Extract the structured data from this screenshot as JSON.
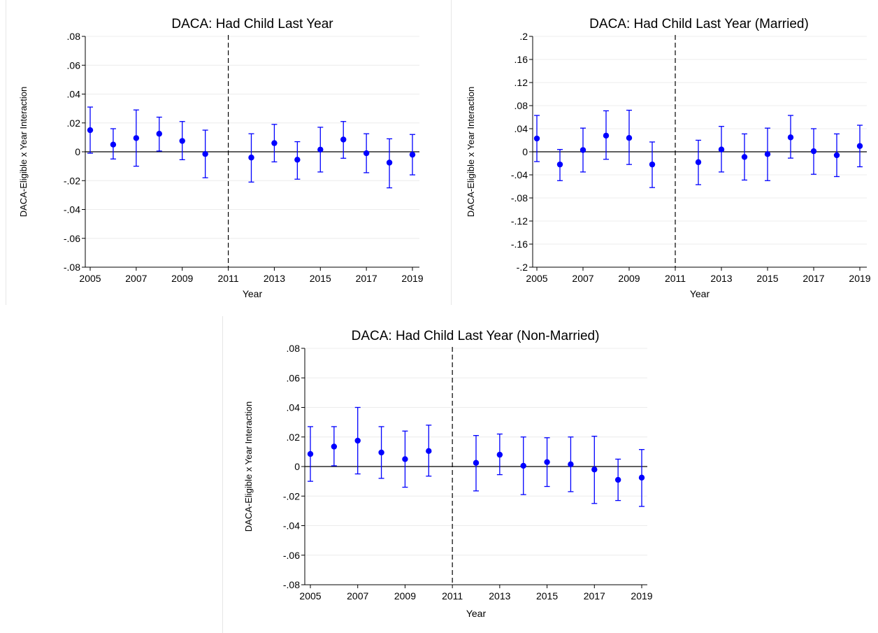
{
  "chart_data": [
    {
      "type": "scatter",
      "title": "DACA: Had Child Last Year",
      "xlabel": "Year",
      "ylabel": "DACA-Eligible x Year Interaction",
      "xlim": [
        2005,
        2019
      ],
      "ylim": [
        -0.08,
        0.08
      ],
      "x_ticks": [
        2005,
        2007,
        2009,
        2011,
        2013,
        2015,
        2017,
        2019
      ],
      "y_ticks": [
        0.08,
        0.06,
        0.04,
        0.02,
        0,
        -0.02,
        -0.04,
        -0.06,
        -0.08
      ],
      "y_tick_labels": [
        ".08",
        ".06",
        ".04",
        ".02",
        "0",
        "-.02",
        "-.04",
        "-.06",
        "-.08"
      ],
      "vline_x": 2011,
      "grid": true,
      "point_color": "#0000ff",
      "series": [
        {
          "x": [
            2005,
            2006,
            2007,
            2008,
            2009,
            2010,
            2012,
            2013,
            2014,
            2015,
            2016,
            2017,
            2018,
            2019
          ],
          "y": [
            0.015,
            0.005,
            0.0095,
            0.0125,
            0.0075,
            -0.0015,
            -0.004,
            0.006,
            -0.0055,
            0.0015,
            0.0085,
            -0.001,
            -0.0075,
            -0.002
          ],
          "lower": [
            -0.001,
            -0.005,
            -0.01,
            0.0005,
            -0.0055,
            -0.018,
            -0.021,
            -0.007,
            -0.019,
            -0.014,
            -0.0045,
            -0.0145,
            -0.025,
            -0.016
          ],
          "upper": [
            0.031,
            0.016,
            0.029,
            0.024,
            0.021,
            0.015,
            0.0125,
            0.019,
            0.007,
            0.017,
            0.021,
            0.0125,
            0.009,
            0.012
          ]
        }
      ]
    },
    {
      "type": "scatter",
      "title": "DACA: Had Child Last Year (Married)",
      "xlabel": "Year",
      "ylabel": "DACA-Eligible x Year Interaction",
      "xlim": [
        2005,
        2019
      ],
      "ylim": [
        -0.2,
        0.2
      ],
      "x_ticks": [
        2005,
        2007,
        2009,
        2011,
        2013,
        2015,
        2017,
        2019
      ],
      "y_ticks": [
        0.2,
        0.16,
        0.12,
        0.08,
        0.04,
        0,
        -0.04,
        -0.08,
        -0.12,
        -0.16,
        -0.2
      ],
      "y_tick_labels": [
        ".2",
        ".16",
        ".12",
        ".08",
        ".04",
        "0",
        "-.04",
        "-.08",
        "-.12",
        "-.16",
        "-.2"
      ],
      "vline_x": 2011,
      "grid": true,
      "point_color": "#0000ff",
      "series": [
        {
          "x": [
            2005,
            2006,
            2007,
            2008,
            2009,
            2010,
            2012,
            2013,
            2014,
            2015,
            2016,
            2017,
            2018,
            2019
          ],
          "y": [
            0.023,
            -0.022,
            0.003,
            0.028,
            0.024,
            -0.022,
            -0.018,
            0.004,
            -0.009,
            -0.004,
            0.025,
            0.001,
            -0.006,
            0.01
          ],
          "lower": [
            -0.017,
            -0.05,
            -0.035,
            -0.013,
            -0.022,
            -0.062,
            -0.057,
            -0.035,
            -0.049,
            -0.05,
            -0.011,
            -0.039,
            -0.043,
            -0.026
          ],
          "upper": [
            0.063,
            0.004,
            0.041,
            0.071,
            0.072,
            0.017,
            0.02,
            0.044,
            0.031,
            0.041,
            0.063,
            0.04,
            0.031,
            0.046
          ]
        }
      ]
    },
    {
      "type": "scatter",
      "title": "DACA: Had Child Last Year (Non-Married)",
      "xlabel": "Year",
      "ylabel": "DACA-Eligible x Year Interaction",
      "xlim": [
        2005,
        2019
      ],
      "ylim": [
        -0.08,
        0.08
      ],
      "x_ticks": [
        2005,
        2007,
        2009,
        2011,
        2013,
        2015,
        2017,
        2019
      ],
      "y_ticks": [
        0.08,
        0.06,
        0.04,
        0.02,
        0,
        -0.02,
        -0.04,
        -0.06,
        -0.08
      ],
      "y_tick_labels": [
        ".08",
        ".06",
        ".04",
        ".02",
        "0",
        "-.02",
        "-.04",
        "-.06",
        "-.08"
      ],
      "vline_x": 2011,
      "grid": true,
      "point_color": "#0000ff",
      "series": [
        {
          "x": [
            2005,
            2006,
            2007,
            2008,
            2009,
            2010,
            2012,
            2013,
            2014,
            2015,
            2016,
            2017,
            2018,
            2019
          ],
          "y": [
            0.0085,
            0.0135,
            0.0175,
            0.0095,
            0.005,
            0.0105,
            0.0025,
            0.008,
            0.0005,
            0.003,
            0.0015,
            -0.002,
            -0.009,
            -0.0075
          ],
          "lower": [
            -0.01,
            0.0005,
            -0.005,
            -0.008,
            -0.014,
            -0.0065,
            -0.0165,
            -0.0055,
            -0.019,
            -0.0135,
            -0.017,
            -0.025,
            -0.023,
            -0.027
          ],
          "upper": [
            0.027,
            0.027,
            0.04,
            0.027,
            0.024,
            0.028,
            0.021,
            0.022,
            0.02,
            0.0195,
            0.02,
            0.0205,
            0.005,
            0.0115
          ]
        }
      ]
    }
  ]
}
